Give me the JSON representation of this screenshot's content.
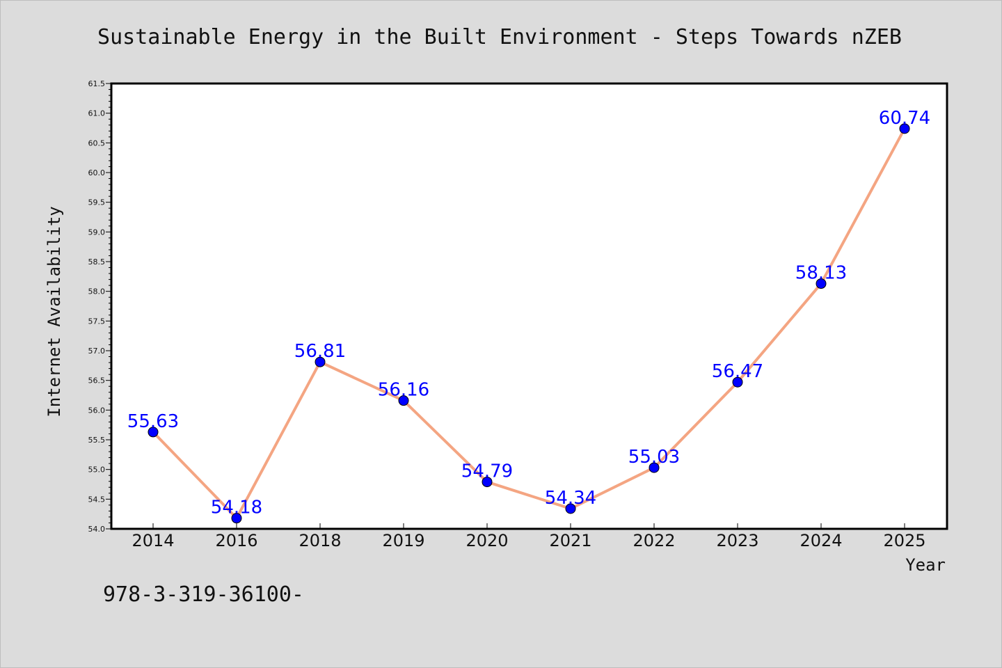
{
  "chart_data": {
    "type": "line",
    "title": "Sustainable Energy in the Built Environment - Steps Towards nZEB",
    "xlabel": "Year",
    "ylabel": "Internet Availability",
    "categories": [
      "2014",
      "2016",
      "2018",
      "2019",
      "2020",
      "2021",
      "2022",
      "2023",
      "2024",
      "2025"
    ],
    "series": [
      {
        "values": [
          55.63,
          54.18,
          56.81,
          56.16,
          54.79,
          54.34,
          55.03,
          56.47,
          58.13,
          60.74
        ],
        "data_labels": [
          "55.63",
          "54.18",
          "56.81",
          "56.16",
          "54.79",
          "54.34",
          "55.03",
          "56.47",
          "58.13",
          "60.74"
        ],
        "line_color": "#f4a582",
        "marker_color": "#0000ff"
      }
    ],
    "ylim": [
      54.0,
      61.5
    ],
    "yticks": [
      "54.0",
      "54.5",
      "55.0",
      "55.5",
      "56.0",
      "56.5",
      "57.0",
      "57.5",
      "58.0",
      "58.5",
      "59.0",
      "59.5",
      "60.0",
      "60.5",
      "61.0",
      "61.5"
    ],
    "grid": false,
    "label_color": "#0000ff"
  },
  "footnote": "978-3-319-36100-"
}
